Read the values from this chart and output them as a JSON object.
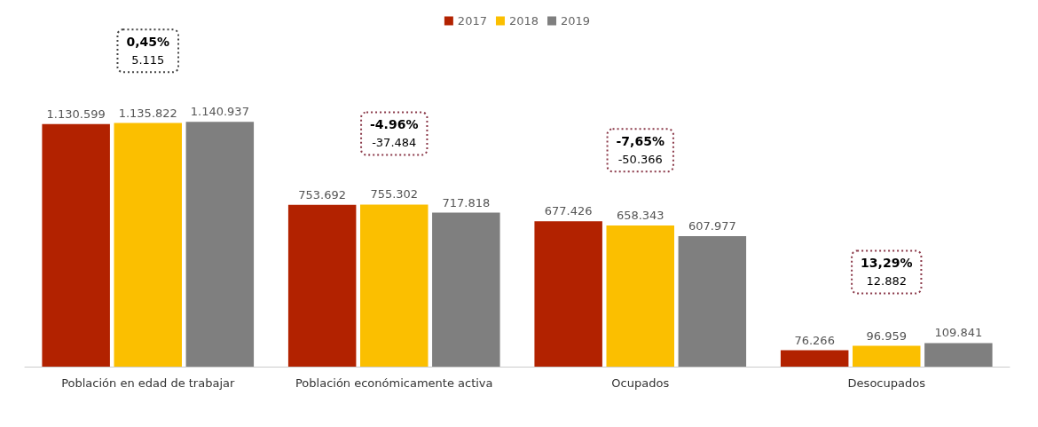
{
  "chart_data": {
    "type": "bar",
    "categories": [
      "Población en edad de trabajar",
      "Población económicamente activa",
      "Ocupados",
      "Desocupados"
    ],
    "series": [
      {
        "name": "2017",
        "color": "#b22200",
        "values": [
          1130599,
          753692,
          677426,
          76266
        ],
        "value_labels": [
          "1.130.599",
          "753.692",
          "677.426",
          "76.266"
        ]
      },
      {
        "name": "2018",
        "color": "#fbbf00",
        "values": [
          1135822,
          755302,
          658343,
          96959
        ],
        "value_labels": [
          "1.135.822",
          "755.302",
          "658.343",
          "96.959"
        ]
      },
      {
        "name": "2019",
        "color": "#7f7f7f",
        "values": [
          1140937,
          717818,
          607977,
          109841
        ],
        "value_labels": [
          "1.140.937",
          "717.818",
          "607.977",
          "109.841"
        ]
      }
    ],
    "annotations": [
      "0,45%\n5.115",
      "-4.96%\n-37.484",
      "-7,65%\n-50.366",
      "13,29%\n12.882"
    ],
    "grid": false,
    "legend": "top"
  }
}
